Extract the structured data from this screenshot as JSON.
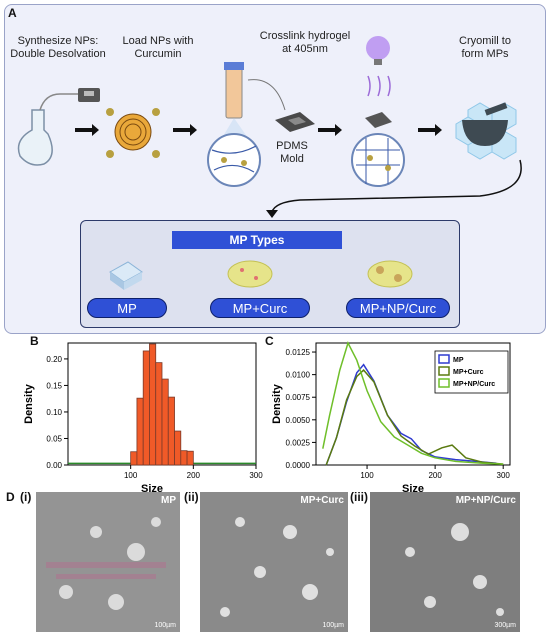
{
  "panels": {
    "A": "A",
    "B": "B",
    "C": "C",
    "D": "D"
  },
  "steps": {
    "s1": "Synthesize NPs:\nDouble Desolvation",
    "s2": "Load NPs with\nCurcumin",
    "s3": "Crosslink hydrogel\nat 405nm",
    "s4": "Cryomill to\nform MPs",
    "pdms": "PDMS\nMold"
  },
  "mp_types": {
    "heading": "MP Types",
    "items": [
      "MP",
      "MP+Curc",
      "MP+NP/Curc"
    ]
  },
  "colors": {
    "accent": "#2f50d6",
    "bar": "#f05a28",
    "mp": "#2f3bcf",
    "mp_curc": "#5a7a10",
    "mp_np_curc": "#6fbf2a"
  },
  "chart_data": [
    {
      "type": "bar",
      "panel": "B",
      "xlabel": "Size",
      "ylabel": "Density",
      "xlim": [
        0,
        300
      ],
      "ylim": [
        0,
        0.23
      ],
      "xticks": [
        "100",
        "200",
        "300"
      ],
      "yticks": [
        "0.00",
        "0.05",
        "0.10",
        "0.15",
        "0.20"
      ],
      "bins": [
        {
          "x0": 100,
          "x1": 110,
          "v": 0.025
        },
        {
          "x0": 110,
          "x1": 120,
          "v": 0.126
        },
        {
          "x0": 120,
          "x1": 130,
          "v": 0.215
        },
        {
          "x0": 130,
          "x1": 140,
          "v": 0.228
        },
        {
          "x0": 140,
          "x1": 150,
          "v": 0.193
        },
        {
          "x0": 150,
          "x1": 160,
          "v": 0.162
        },
        {
          "x0": 160,
          "x1": 170,
          "v": 0.128
        },
        {
          "x0": 170,
          "x1": 180,
          "v": 0.064
        },
        {
          "x0": 180,
          "x1": 190,
          "v": 0.027
        },
        {
          "x0": 190,
          "x1": 200,
          "v": 0.026
        }
      ]
    },
    {
      "type": "line",
      "panel": "C",
      "xlabel": "Size",
      "ylabel": "Density",
      "xlim": [
        25,
        310
      ],
      "ylim": [
        0,
        0.0135
      ],
      "xticks": [
        "100",
        "200",
        "300"
      ],
      "yticks": [
        "0.0000",
        "0.0025",
        "0.0050",
        "0.0075",
        "0.0100",
        "0.0125"
      ],
      "series": [
        {
          "name": "MP",
          "color": "#2f3bcf",
          "points": [
            [
              40,
              0.0
            ],
            [
              55,
              0.003
            ],
            [
              70,
              0.007
            ],
            [
              85,
              0.0102
            ],
            [
              95,
              0.0111
            ],
            [
              110,
              0.0093
            ],
            [
              130,
              0.0055
            ],
            [
              150,
              0.0035
            ],
            [
              165,
              0.0029
            ],
            [
              180,
              0.0016
            ],
            [
              200,
              0.0009
            ],
            [
              230,
              0.0006
            ],
            [
              260,
              0.0004
            ],
            [
              290,
              0.0002
            ]
          ]
        },
        {
          "name": "MP+Curc",
          "color": "#5a7a10",
          "points": [
            [
              40,
              0.0
            ],
            [
              55,
              0.003
            ],
            [
              70,
              0.0072
            ],
            [
              85,
              0.0098
            ],
            [
              95,
              0.0105
            ],
            [
              110,
              0.0092
            ],
            [
              130,
              0.0055
            ],
            [
              150,
              0.0032
            ],
            [
              170,
              0.0021
            ],
            [
              190,
              0.0012
            ],
            [
              210,
              0.0019
            ],
            [
              225,
              0.0022
            ],
            [
              245,
              0.0008
            ],
            [
              270,
              0.0003
            ],
            [
              300,
              0.0001
            ]
          ]
        },
        {
          "name": "MP+NP/Curc",
          "color": "#6fbf2a",
          "points": [
            [
              35,
              0.0018
            ],
            [
              45,
              0.0055
            ],
            [
              60,
              0.0105
            ],
            [
              72,
              0.0135
            ],
            [
              85,
              0.0116
            ],
            [
              100,
              0.0082
            ],
            [
              120,
              0.0048
            ],
            [
              140,
              0.0031
            ],
            [
              160,
              0.0022
            ],
            [
              180,
              0.0013
            ],
            [
              200,
              0.0008
            ],
            [
              230,
              0.0004
            ],
            [
              270,
              0.0002
            ],
            [
              300,
              0.0001
            ]
          ]
        }
      ]
    }
  ],
  "images": [
    {
      "tag": "(i)",
      "label": "MP",
      "scale": "100µm"
    },
    {
      "tag": "(ii)",
      "label": "MP+Curc",
      "scale": "100µm"
    },
    {
      "tag": "(iii)",
      "label": "MP+NP/Curc",
      "scale": "300µm"
    }
  ]
}
